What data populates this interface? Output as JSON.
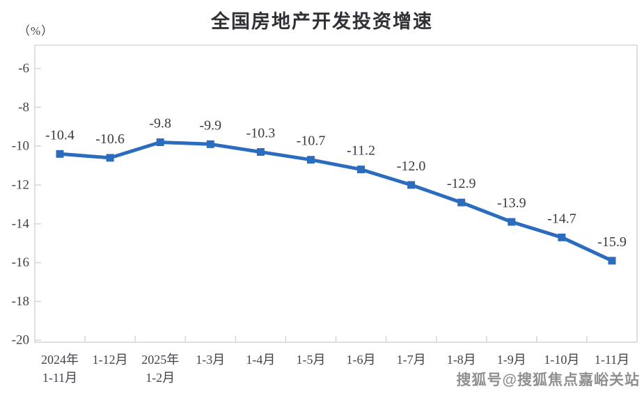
{
  "chart_data": {
    "type": "line",
    "title": "全国房地产开发投资增速",
    "y_unit_label": "（%）",
    "categories": [
      [
        "2024年",
        "1-11月"
      ],
      [
        "1-12月"
      ],
      [
        "2025年",
        "1-2月"
      ],
      [
        "1-3月"
      ],
      [
        "1-4月"
      ],
      [
        "1-5月"
      ],
      [
        "1-6月"
      ],
      [
        "1-7月"
      ],
      [
        "1-8月"
      ],
      [
        "1-9月"
      ],
      [
        "1-10月"
      ],
      [
        "1-11月"
      ]
    ],
    "values": [
      -10.4,
      -10.6,
      -9.8,
      -9.9,
      -10.3,
      -10.7,
      -11.2,
      -12.0,
      -12.9,
      -13.9,
      -14.7,
      -15.9
    ],
    "data_labels": [
      "-10.4",
      "-10.6",
      "-9.8",
      "-9.9",
      "-10.3",
      "-10.7",
      "-11.2",
      "-12.0",
      "-12.9",
      "-13.9",
      "-14.7",
      "-15.9"
    ],
    "y_ticks": [
      -6,
      -8,
      -10,
      -12,
      -14,
      -16,
      -18,
      -20
    ],
    "y_range": [
      -20.1,
      -4.8
    ],
    "grid": false,
    "legend": "none",
    "series_color": "#2b6cbe",
    "axis_color": "#d6d6d6",
    "label_color": "#43434d"
  },
  "watermark": {
    "text": "搜狐号@搜狐焦点嘉峪关站"
  }
}
